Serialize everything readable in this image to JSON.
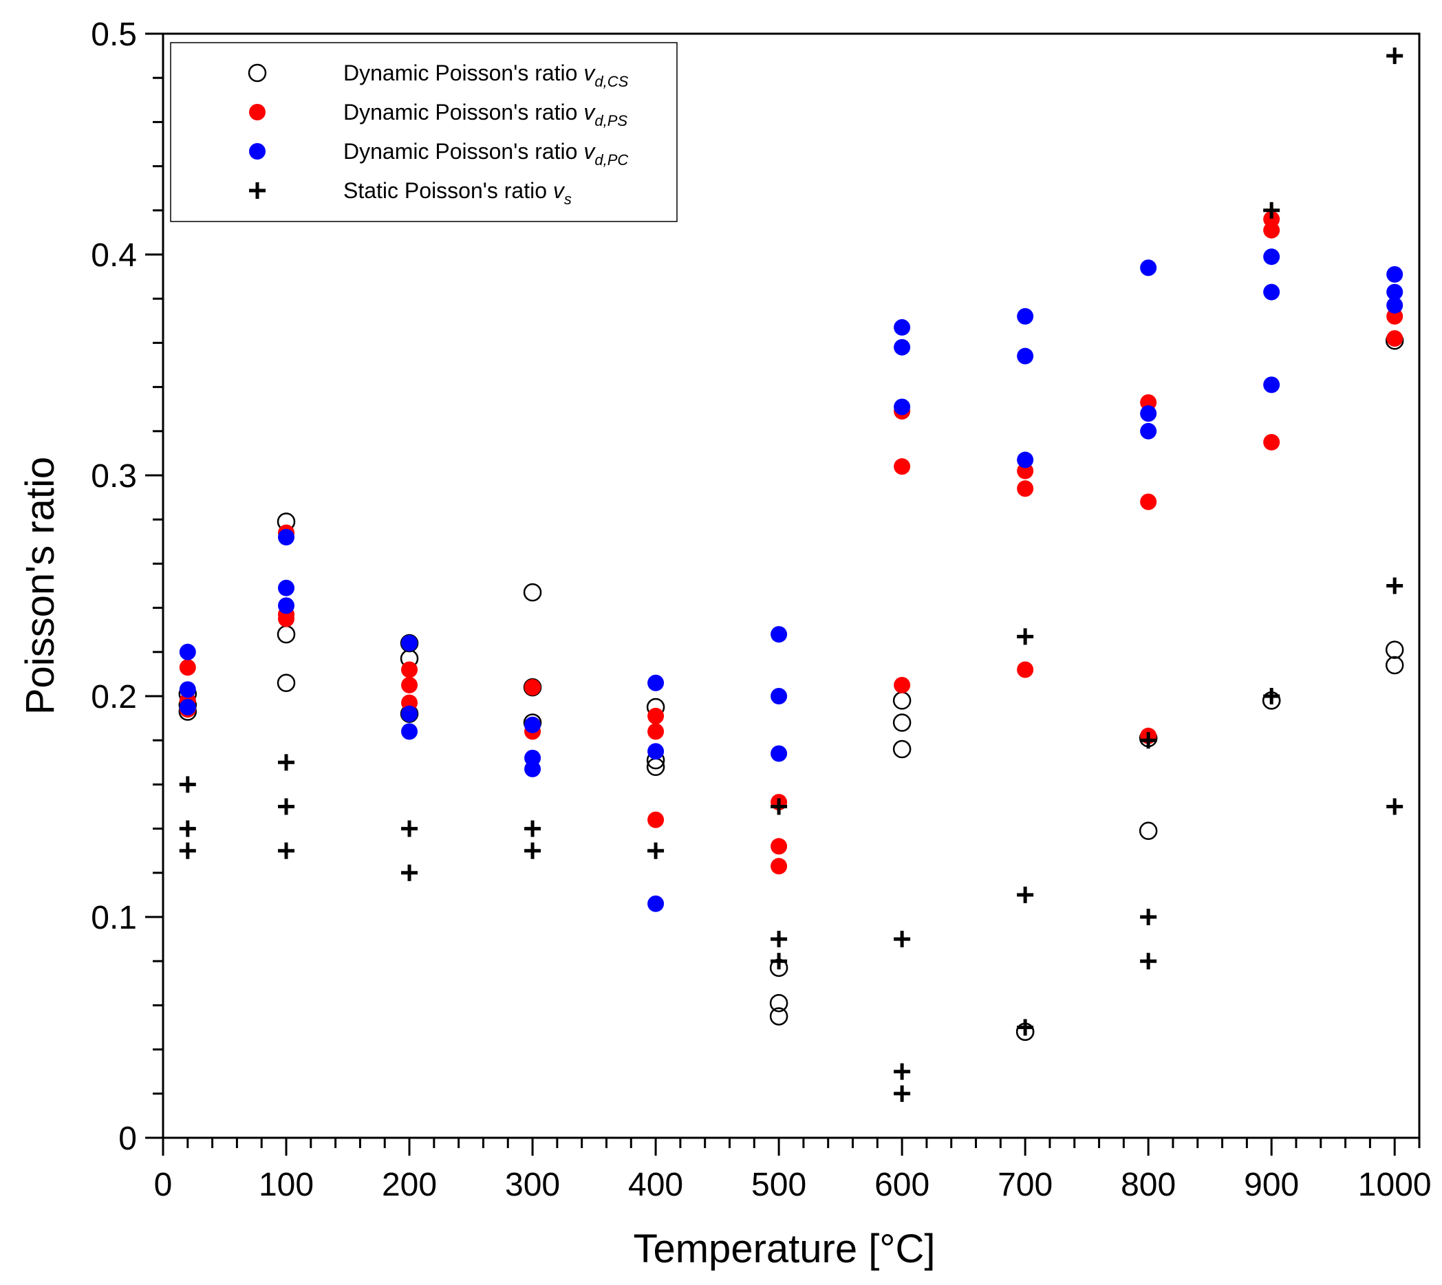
{
  "colors": {
    "axis": "#000000",
    "cs_stroke": "#000000",
    "ps_fill": "#ff0000",
    "pc_fill": "#0000ff",
    "static_mark": "#000000",
    "background": "#ffffff"
  },
  "chart_data": {
    "type": "scatter",
    "title": "",
    "xlabel": "Temperature [°C]",
    "ylabel": "Poisson's ratio",
    "xlim": [
      0,
      1020
    ],
    "ylim": [
      0,
      0.5
    ],
    "xticks": [
      0,
      100,
      200,
      300,
      400,
      500,
      600,
      700,
      800,
      900,
      1000
    ],
    "xtick_labels": [
      "0",
      "100",
      "200",
      "300",
      "400",
      "500",
      "600",
      "700",
      "800",
      "900",
      "1000"
    ],
    "yticks": [
      0,
      0.1,
      0.2,
      0.3,
      0.4,
      0.5
    ],
    "ytick_labels": [
      "0",
      "0.1",
      "0.2",
      "0.3",
      "0.4",
      "0.5"
    ],
    "x_minor_step": 20,
    "y_minor_step": 0.02,
    "grid": false,
    "legend_position": "top-left",
    "series": [
      {
        "name": "Dynamic Poisson's ratio v_d,CS",
        "legend_base": "Dynamic Poisson's ratio",
        "legend_var": "v",
        "legend_sub": "d,CS",
        "marker": "open-circle",
        "points": [
          [
            20,
            0.193
          ],
          [
            20,
            0.201
          ],
          [
            20,
            0.196
          ],
          [
            100,
            0.279
          ],
          [
            100,
            0.228
          ],
          [
            100,
            0.206
          ],
          [
            200,
            0.217
          ],
          [
            200,
            0.192
          ],
          [
            200,
            0.224
          ],
          [
            300,
            0.247
          ],
          [
            300,
            0.204
          ],
          [
            300,
            0.188
          ],
          [
            400,
            0.195
          ],
          [
            400,
            0.171
          ],
          [
            400,
            0.168
          ],
          [
            500,
            0.077
          ],
          [
            500,
            0.061
          ],
          [
            500,
            0.055
          ],
          [
            600,
            0.198
          ],
          [
            600,
            0.188
          ],
          [
            600,
            0.176
          ],
          [
            700,
            0.048
          ],
          [
            700,
            0.048
          ],
          [
            800,
            0.139
          ],
          [
            800,
            0.181
          ],
          [
            900,
            0.198
          ],
          [
            900,
            0.198
          ],
          [
            1000,
            0.221
          ],
          [
            1000,
            0.214
          ],
          [
            1000,
            0.361
          ]
        ]
      },
      {
        "name": "Dynamic Poisson's ratio v_d,PS",
        "legend_base": "Dynamic Poisson's ratio",
        "legend_var": "v",
        "legend_sub": "d,PS",
        "marker": "filled-circle",
        "points": [
          [
            20,
            0.213
          ],
          [
            20,
            0.198
          ],
          [
            20,
            0.194
          ],
          [
            100,
            0.274
          ],
          [
            100,
            0.237
          ],
          [
            100,
            0.235
          ],
          [
            200,
            0.212
          ],
          [
            200,
            0.205
          ],
          [
            200,
            0.197
          ],
          [
            300,
            0.204
          ],
          [
            300,
            0.187
          ],
          [
            300,
            0.184
          ],
          [
            400,
            0.191
          ],
          [
            400,
            0.184
          ],
          [
            400,
            0.144
          ],
          [
            500,
            0.152
          ],
          [
            500,
            0.132
          ],
          [
            500,
            0.123
          ],
          [
            600,
            0.329
          ],
          [
            600,
            0.304
          ],
          [
            600,
            0.205
          ],
          [
            700,
            0.302
          ],
          [
            700,
            0.294
          ],
          [
            700,
            0.212
          ],
          [
            800,
            0.333
          ],
          [
            800,
            0.288
          ],
          [
            800,
            0.182
          ],
          [
            900,
            0.416
          ],
          [
            900,
            0.411
          ],
          [
            900,
            0.315
          ],
          [
            1000,
            0.372
          ],
          [
            1000,
            0.362
          ]
        ]
      },
      {
        "name": "Dynamic Poisson's ratio v_d,PC",
        "legend_base": "Dynamic Poisson's ratio",
        "legend_var": "v",
        "legend_sub": "d,PC",
        "marker": "filled-circle",
        "points": [
          [
            20,
            0.22
          ],
          [
            20,
            0.203
          ],
          [
            20,
            0.195
          ],
          [
            100,
            0.272
          ],
          [
            100,
            0.249
          ],
          [
            100,
            0.241
          ],
          [
            200,
            0.224
          ],
          [
            200,
            0.192
          ],
          [
            200,
            0.184
          ],
          [
            300,
            0.187
          ],
          [
            300,
            0.172
          ],
          [
            300,
            0.167
          ],
          [
            400,
            0.206
          ],
          [
            400,
            0.175
          ],
          [
            400,
            0.106
          ],
          [
            500,
            0.228
          ],
          [
            500,
            0.2
          ],
          [
            500,
            0.174
          ],
          [
            600,
            0.367
          ],
          [
            600,
            0.358
          ],
          [
            600,
            0.331
          ],
          [
            700,
            0.372
          ],
          [
            700,
            0.354
          ],
          [
            700,
            0.307
          ],
          [
            800,
            0.394
          ],
          [
            800,
            0.328
          ],
          [
            800,
            0.32
          ],
          [
            900,
            0.399
          ],
          [
            900,
            0.383
          ],
          [
            900,
            0.341
          ],
          [
            1000,
            0.391
          ],
          [
            1000,
            0.383
          ],
          [
            1000,
            0.377
          ]
        ]
      },
      {
        "name": "Static Poisson's ratio v_s",
        "legend_base": "Static Poisson's ratio",
        "legend_var": "v",
        "legend_sub": "s",
        "marker": "plus",
        "points": [
          [
            20,
            0.16
          ],
          [
            20,
            0.14
          ],
          [
            20,
            0.13
          ],
          [
            100,
            0.17
          ],
          [
            100,
            0.15
          ],
          [
            100,
            0.13
          ],
          [
            200,
            0.14
          ],
          [
            200,
            0.12
          ],
          [
            300,
            0.14
          ],
          [
            300,
            0.13
          ],
          [
            400,
            0.13
          ],
          [
            500,
            0.15
          ],
          [
            500,
            0.09
          ],
          [
            500,
            0.08
          ],
          [
            600,
            0.09
          ],
          [
            600,
            0.03
          ],
          [
            600,
            0.02
          ],
          [
            700,
            0.227
          ],
          [
            700,
            0.11
          ],
          [
            700,
            0.05
          ],
          [
            800,
            0.18
          ],
          [
            800,
            0.1
          ],
          [
            800,
            0.08
          ],
          [
            900,
            0.42
          ],
          [
            900,
            0.2
          ],
          [
            1000,
            0.49
          ],
          [
            1000,
            0.25
          ],
          [
            1000,
            0.15
          ]
        ]
      }
    ]
  }
}
